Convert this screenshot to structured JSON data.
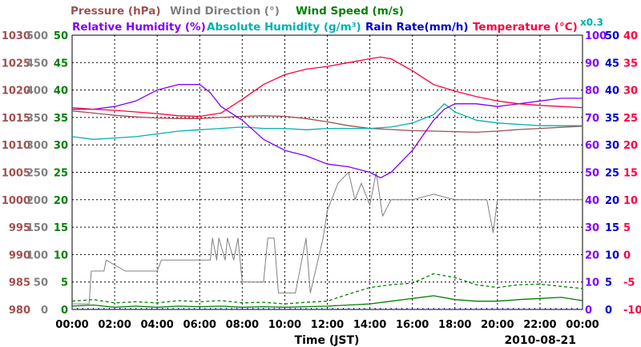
{
  "chart_data": {
    "type": "line",
    "xlabel": "Time (JST)",
    "date": "2010-08-21",
    "x_ticks": [
      "00:00",
      "02:00",
      "04:00",
      "06:00",
      "08:00",
      "10:00",
      "12:00",
      "14:00",
      "16:00",
      "18:00",
      "20:00",
      "22:00",
      "00:00"
    ],
    "legend": {
      "pressure": {
        "label": "Pressure (hPa)",
        "color": "#a05050"
      },
      "wind_direction": {
        "label": "Wind Direction (°)",
        "color": "#808080"
      },
      "wind_speed": {
        "label": "Wind Speed (m/s)",
        "color": "#008000"
      },
      "relative_humidity": {
        "label": "Relative Humidity (%)",
        "color": "#8000ff"
      },
      "absolute_humidity": {
        "label": "Absolute Humidity (g/m³)",
        "color": "#00b0b0"
      },
      "rain_rate": {
        "label": "Rain Rate(mm/h)",
        "color": "#0000cc"
      },
      "temperature": {
        "label": "Temperature (°C)",
        "color": "#ff0040"
      },
      "abs_hum_scale_note": "x0.3"
    },
    "axes": {
      "pressure": {
        "range": [
          980,
          1030
        ],
        "ticks": [
          "1030",
          "1025",
          "1020",
          "1015",
          "1010",
          "1005",
          "1000",
          "995",
          "990",
          "985",
          "980"
        ],
        "color": "#a05050"
      },
      "wind_direction": {
        "range": [
          0,
          500
        ],
        "ticks": [
          "500",
          "450",
          "400",
          "350",
          "300",
          "250",
          "200",
          "150",
          "100",
          "50",
          "0"
        ],
        "color": "#808080"
      },
      "wind_speed": {
        "range": [
          0,
          50
        ],
        "ticks": [
          "50",
          "45",
          "40",
          "35",
          "30",
          "25",
          "20",
          "15",
          "10",
          "5",
          "0"
        ],
        "color": "#008000"
      },
      "relative_humidity": {
        "range": [
          0,
          100
        ],
        "ticks": [
          "100",
          "90",
          "80",
          "70",
          "60",
          "50",
          "40",
          "30",
          "20",
          "10",
          "0"
        ],
        "color": "#8000ff"
      },
      "rain_rate": {
        "range": [
          0,
          50
        ],
        "ticks": [
          "50",
          "45",
          "40",
          "35",
          "30",
          "25",
          "20",
          "15",
          "10",
          "5",
          "0"
        ],
        "color": "#0000cc"
      },
      "temperature": {
        "range": [
          -10,
          40
        ],
        "ticks": [
          "40",
          "35",
          "30",
          "25",
          "20",
          "15",
          "10",
          "5",
          "0",
          "-5",
          "-10"
        ],
        "color": "#ff0040"
      }
    },
    "series": [
      {
        "key": "pressure",
        "name": "Pressure (hPa)",
        "color": "#a05050",
        "x": [
          0,
          1,
          2,
          3,
          4,
          5,
          6,
          7,
          8,
          9,
          10,
          11,
          12,
          13,
          14,
          15,
          16,
          17,
          18,
          19,
          20,
          21,
          22,
          23,
          24
        ],
        "y": [
          1016.2,
          1015.8,
          1015.4,
          1015.1,
          1014.9,
          1014.8,
          1014.8,
          1015.0,
          1015.2,
          1015.3,
          1015.2,
          1014.8,
          1014.2,
          1013.5,
          1013.0,
          1012.8,
          1012.6,
          1012.5,
          1012.4,
          1012.3,
          1012.5,
          1012.8,
          1013.0,
          1013.2,
          1013.4
        ]
      },
      {
        "key": "temperature",
        "name": "Temperature (°C)",
        "color": "#ff0040",
        "x": [
          0,
          1,
          2,
          3,
          4,
          5,
          6,
          7,
          8,
          9,
          10,
          11,
          12,
          13,
          14,
          14.5,
          15,
          16,
          17,
          18,
          19,
          20,
          21,
          22,
          23,
          24
        ],
        "y": [
          26.8,
          26.5,
          26.3,
          26.0,
          25.7,
          25.3,
          25.2,
          25.8,
          28.3,
          31.0,
          32.8,
          33.8,
          34.3,
          35.0,
          35.7,
          36.0,
          35.7,
          33.5,
          31.0,
          29.8,
          28.8,
          28.0,
          27.5,
          27.2,
          27.0,
          26.8
        ]
      },
      {
        "key": "relative_humidity",
        "name": "Relative Humidity (%)",
        "color": "#8000ff",
        "x": [
          0,
          1,
          2,
          3,
          4,
          5,
          6,
          6.5,
          7,
          8,
          9,
          10,
          11,
          12,
          13,
          14,
          14.5,
          15,
          16,
          17,
          17.5,
          18,
          19,
          20,
          21,
          22,
          23,
          24
        ],
        "y": [
          73,
          73,
          74,
          76,
          80,
          82,
          82,
          79,
          74,
          69,
          62,
          58,
          56,
          53,
          52,
          50,
          48,
          50,
          58,
          69,
          73,
          75,
          75,
          74,
          75,
          76,
          77,
          77
        ]
      },
      {
        "key": "absolute_humidity",
        "name": "Absolute Humidity (g/m³)",
        "color": "#00b0b0",
        "x": [
          0,
          1,
          2,
          3,
          4,
          5,
          6,
          7,
          8,
          9,
          10,
          11,
          12,
          13,
          14,
          15,
          16,
          17,
          17.5,
          18,
          19,
          20,
          21,
          22,
          23,
          24
        ],
        "y": [
          63,
          62,
          62.5,
          63,
          64,
          65,
          65.5,
          66,
          66.5,
          66,
          66,
          65.5,
          66,
          66,
          66,
          66.5,
          68,
          71,
          75,
          72,
          69,
          68,
          67.5,
          67,
          67,
          67
        ]
      },
      {
        "key": "wind_direction",
        "name": "Wind Direction (°)",
        "color": "#808080",
        "x": [
          0,
          0.8,
          0.9,
          1.5,
          1.6,
          2.5,
          4,
          4.2,
          6.5,
          6.6,
          6.8,
          6.9,
          7.2,
          7.3,
          7.6,
          7.8,
          8,
          8.5,
          9,
          9.2,
          9.5,
          9.7,
          10,
          10.5,
          11,
          11.2,
          11.8,
          12,
          12.2,
          12.5,
          13,
          13.3,
          13.6,
          14,
          14.3,
          14.6,
          15,
          15.3,
          16,
          17,
          18,
          19,
          19.5,
          19.8,
          20,
          21,
          22,
          23,
          24
        ],
        "y": [
          10,
          10,
          70,
          70,
          90,
          70,
          70,
          90,
          90,
          130,
          90,
          130,
          90,
          130,
          90,
          130,
          50,
          50,
          50,
          130,
          130,
          30,
          30,
          30,
          130,
          30,
          130,
          180,
          200,
          230,
          250,
          200,
          230,
          190,
          250,
          170,
          200,
          200,
          200,
          210,
          200,
          200,
          200,
          140,
          200,
          200,
          200,
          200,
          200
        ]
      },
      {
        "key": "wind_speed",
        "name": "Wind Speed (m/s)",
        "color": "#008000",
        "x": [
          0,
          1,
          2,
          3,
          4,
          5,
          6,
          7,
          8,
          9,
          10,
          11,
          12,
          13,
          14,
          15,
          16,
          17,
          18,
          19,
          20,
          21,
          22,
          23,
          24
        ],
        "y": [
          0.6,
          0.8,
          0.4,
          0.6,
          0.4,
          0.6,
          0.5,
          0.6,
          0.4,
          0.5,
          0.4,
          0.5,
          0.6,
          0.8,
          1.0,
          1.5,
          2.0,
          2.5,
          1.8,
          1.5,
          1.5,
          1.8,
          2.0,
          2.2,
          1.6
        ]
      },
      {
        "key": "wind_speed_gust",
        "name": "",
        "color": "#008000",
        "dashed": true,
        "x": [
          0,
          1,
          2,
          3,
          4,
          5,
          6,
          7,
          8,
          9,
          10,
          11,
          12,
          13,
          14,
          15,
          16,
          17,
          18,
          19,
          20,
          21,
          22,
          23,
          24
        ],
        "y": [
          1.5,
          1.8,
          1.2,
          1.4,
          1.2,
          1.6,
          1.4,
          1.6,
          1.2,
          1.3,
          1.0,
          1.3,
          1.5,
          2.8,
          4.0,
          4.5,
          4.8,
          6.5,
          5.8,
          4.5,
          4.0,
          4.5,
          4.6,
          4.2,
          3.8
        ]
      }
    ],
    "grid": true
  }
}
